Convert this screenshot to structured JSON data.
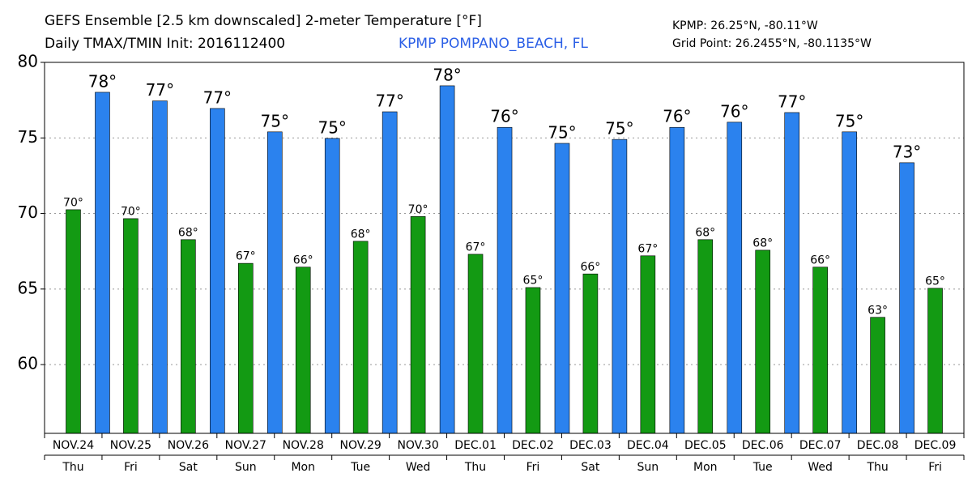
{
  "chart_data": {
    "type": "bar",
    "title": "GEFS Ensemble [2.5 km downscaled] 2-meter Temperature [°F]",
    "subtitle": "Daily TMAX/TMIN Init: 2016112400",
    "station": "KPMP POMPANO_BEACH, FL",
    "location": "KPMP: 26.25°N, -80.11°W",
    "grid_point": "Grid Point: 26.2455°N, -80.1135°W",
    "categories": [
      "NOV.24",
      "NOV.25",
      "NOV.26",
      "NOV.27",
      "NOV.28",
      "NOV.29",
      "NOV.30",
      "DEC.01",
      "DEC.02",
      "DEC.03",
      "DEC.04",
      "DEC.05",
      "DEC.06",
      "DEC.07",
      "DEC.08",
      "DEC.09"
    ],
    "weekdays": [
      "Thu",
      "Fri",
      "Sat",
      "Sun",
      "Mon",
      "Tue",
      "Wed",
      "Thu",
      "Fri",
      "Sat",
      "Sun",
      "Mon",
      "Tue",
      "Wed",
      "Thu",
      "Fri"
    ],
    "series": [
      {
        "color": "#139a13",
        "values": [
          70.25,
          69.66,
          68.27,
          66.7,
          66.45,
          68.16,
          69.8,
          67.3,
          65.1,
          66.0,
          67.2,
          68.27,
          67.57,
          66.45,
          63.13,
          65.05
        ],
        "value_labels": [
          "70°",
          "70°",
          "68°",
          "67°",
          "66°",
          "68°",
          "70°",
          "67°",
          "65°",
          "66°",
          "67°",
          "68°",
          "68°",
          "66°",
          "63°",
          "65°"
        ]
      },
      {
        "color": "#2b82ee",
        "values": [
          78.02,
          77.45,
          76.95,
          75.4,
          74.97,
          76.73,
          78.45,
          75.7,
          74.64,
          74.9,
          75.7,
          76.04,
          76.68,
          75.4,
          73.36,
          null
        ],
        "value_labels": [
          "78°",
          "77°",
          "77°",
          "75°",
          "75°",
          "77°",
          "78°",
          "76°",
          "75°",
          "75°",
          "76°",
          "76°",
          "77°",
          "75°",
          "73°",
          null
        ]
      }
    ],
    "ylim": [
      55.45,
      80
    ],
    "yticks": [
      60,
      65,
      70,
      75,
      80
    ],
    "grid": true
  }
}
